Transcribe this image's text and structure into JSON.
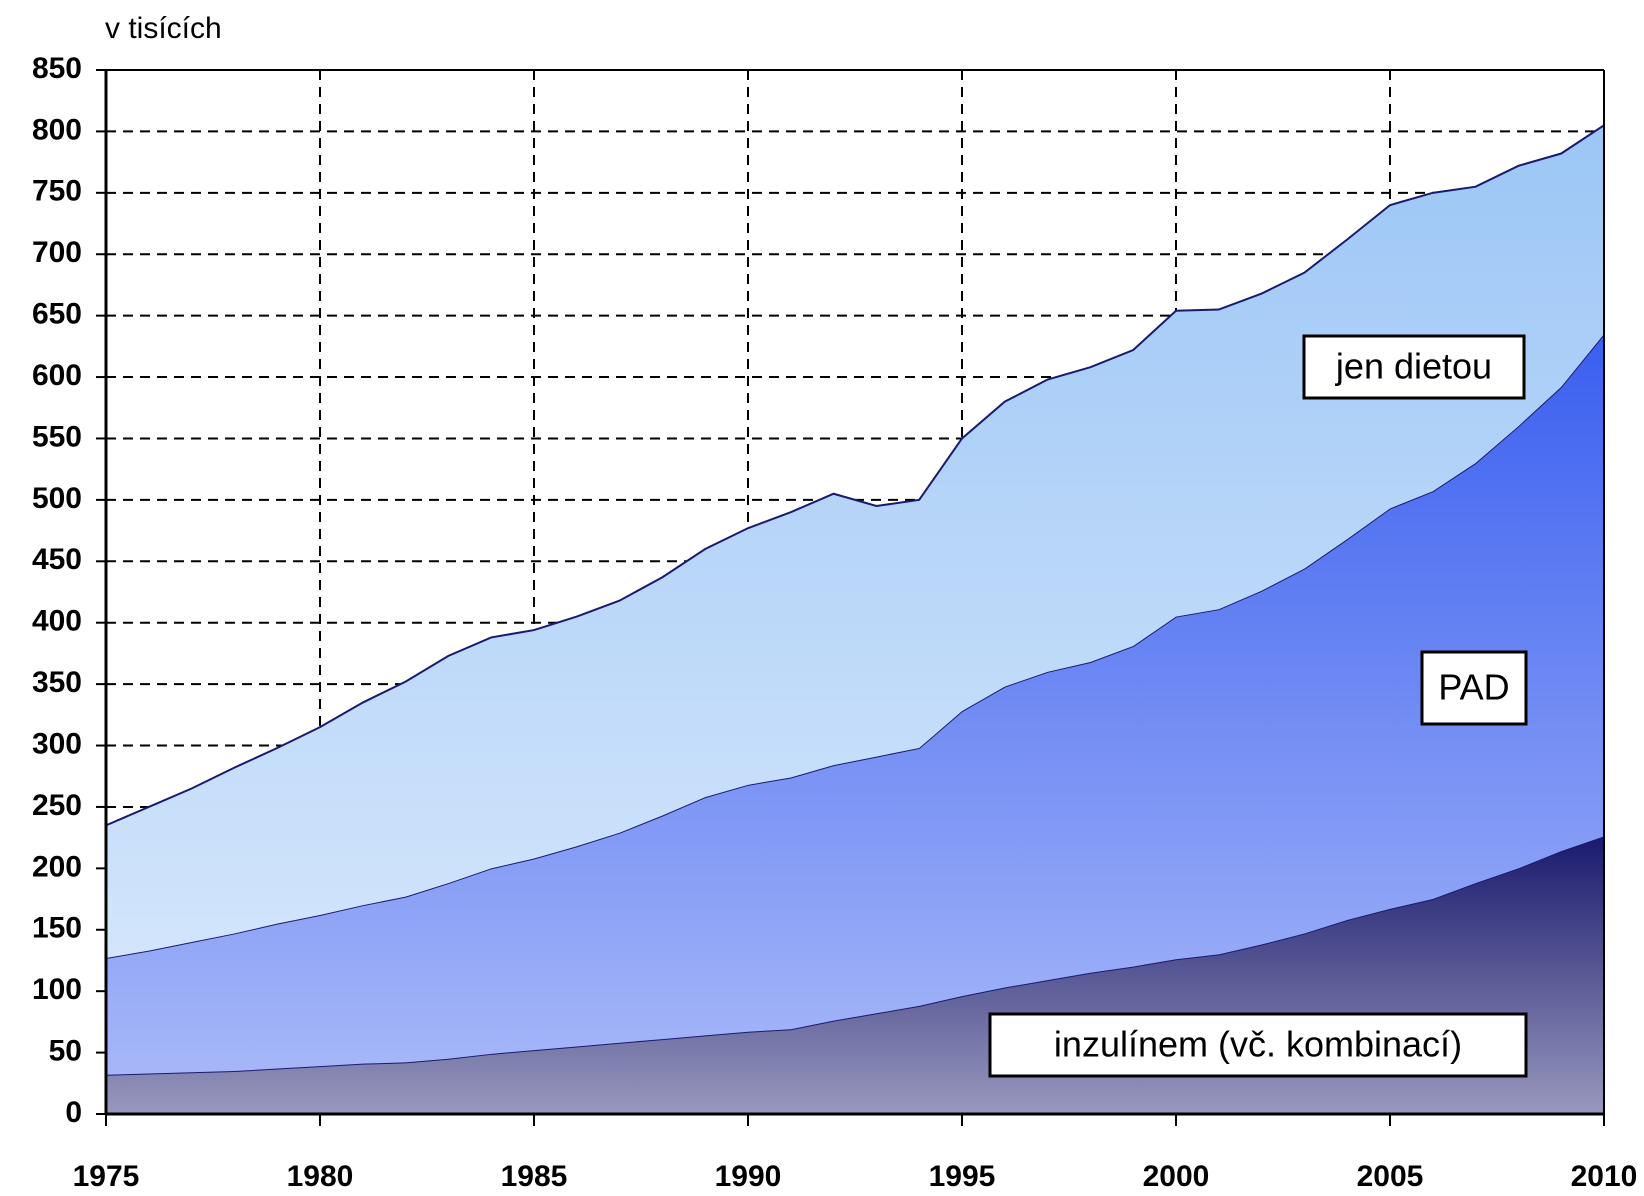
{
  "chart_data": {
    "type": "stacked_area",
    "y_label": "v tisících",
    "x": [
      1975,
      1976,
      1977,
      1978,
      1979,
      1980,
      1981,
      1982,
      1983,
      1984,
      1985,
      1986,
      1987,
      1988,
      1989,
      1990,
      1991,
      1992,
      1993,
      1994,
      1995,
      1996,
      1997,
      1998,
      1999,
      2000,
      2001,
      2002,
      2003,
      2004,
      2005,
      2006,
      2007,
      2008,
      2009,
      2010
    ],
    "series": [
      {
        "name": "inzulínem (vč. kombinací)",
        "color": "#1a1a6e",
        "values": [
          32,
          33,
          34,
          35,
          37,
          39,
          41,
          42,
          45,
          49,
          52,
          55,
          58,
          61,
          64,
          67,
          69,
          76,
          82,
          88,
          96,
          103,
          109,
          115,
          120,
          126,
          130,
          138,
          147,
          158,
          167,
          175,
          188,
          200,
          214,
          226
        ]
      },
      {
        "name": "PAD",
        "color": "#3a5ff0",
        "values": [
          95,
          100,
          106,
          112,
          118,
          123,
          129,
          135,
          143,
          151,
          156,
          163,
          171,
          182,
          194,
          201,
          205,
          208,
          209,
          210,
          232,
          245,
          251,
          253,
          261,
          279,
          281,
          288,
          297,
          310,
          326,
          332,
          342,
          360,
          378,
          409
        ]
      },
      {
        "name": "jen dietou",
        "color": "#9cc6f6",
        "values": [
          108,
          117,
          125,
          135,
          143,
          153,
          165,
          175,
          185,
          188,
          186,
          187,
          189,
          194,
          202,
          209,
          216,
          221,
          204,
          202,
          222,
          232,
          238,
          240,
          241,
          249,
          244,
          242,
          241,
          244,
          247,
          243,
          225,
          212,
          190,
          170
        ]
      }
    ],
    "xlim": [
      1975,
      2010
    ],
    "xticks": [
      1975,
      1980,
      1985,
      1990,
      1995,
      2000,
      2005,
      2010
    ],
    "ylim": [
      0,
      850
    ],
    "yticks": [
      0,
      50,
      100,
      150,
      200,
      250,
      300,
      350,
      400,
      450,
      500,
      550,
      600,
      650,
      700,
      750,
      800,
      850
    ],
    "grid": true
  }
}
